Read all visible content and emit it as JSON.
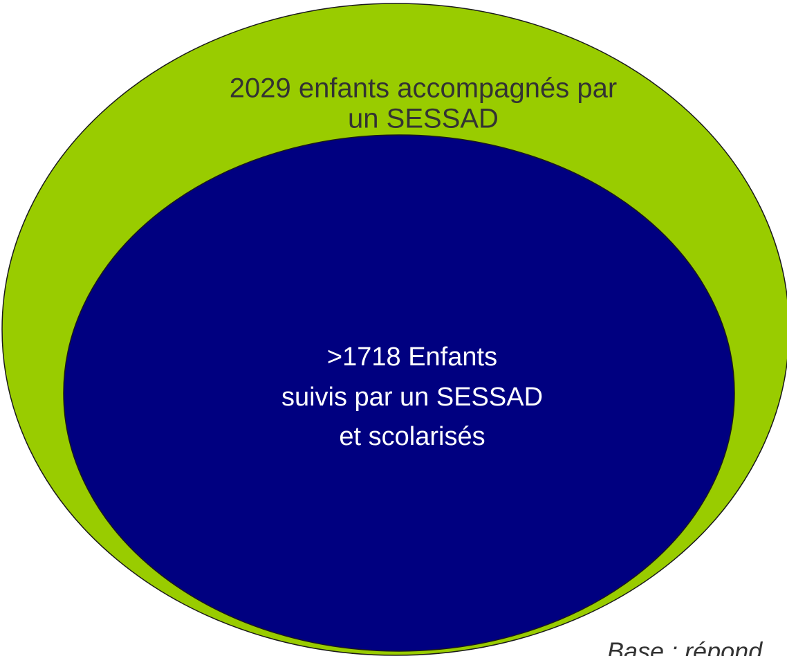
{
  "outer": {
    "lines": [
      "2029 enfants accompagnés par",
      "un SESSAD"
    ]
  },
  "inner": {
    "lines": [
      ">1718 Enfants",
      "suivis par un SESSAD",
      "et scolarisés"
    ]
  },
  "footnote": "Base : répond"
}
